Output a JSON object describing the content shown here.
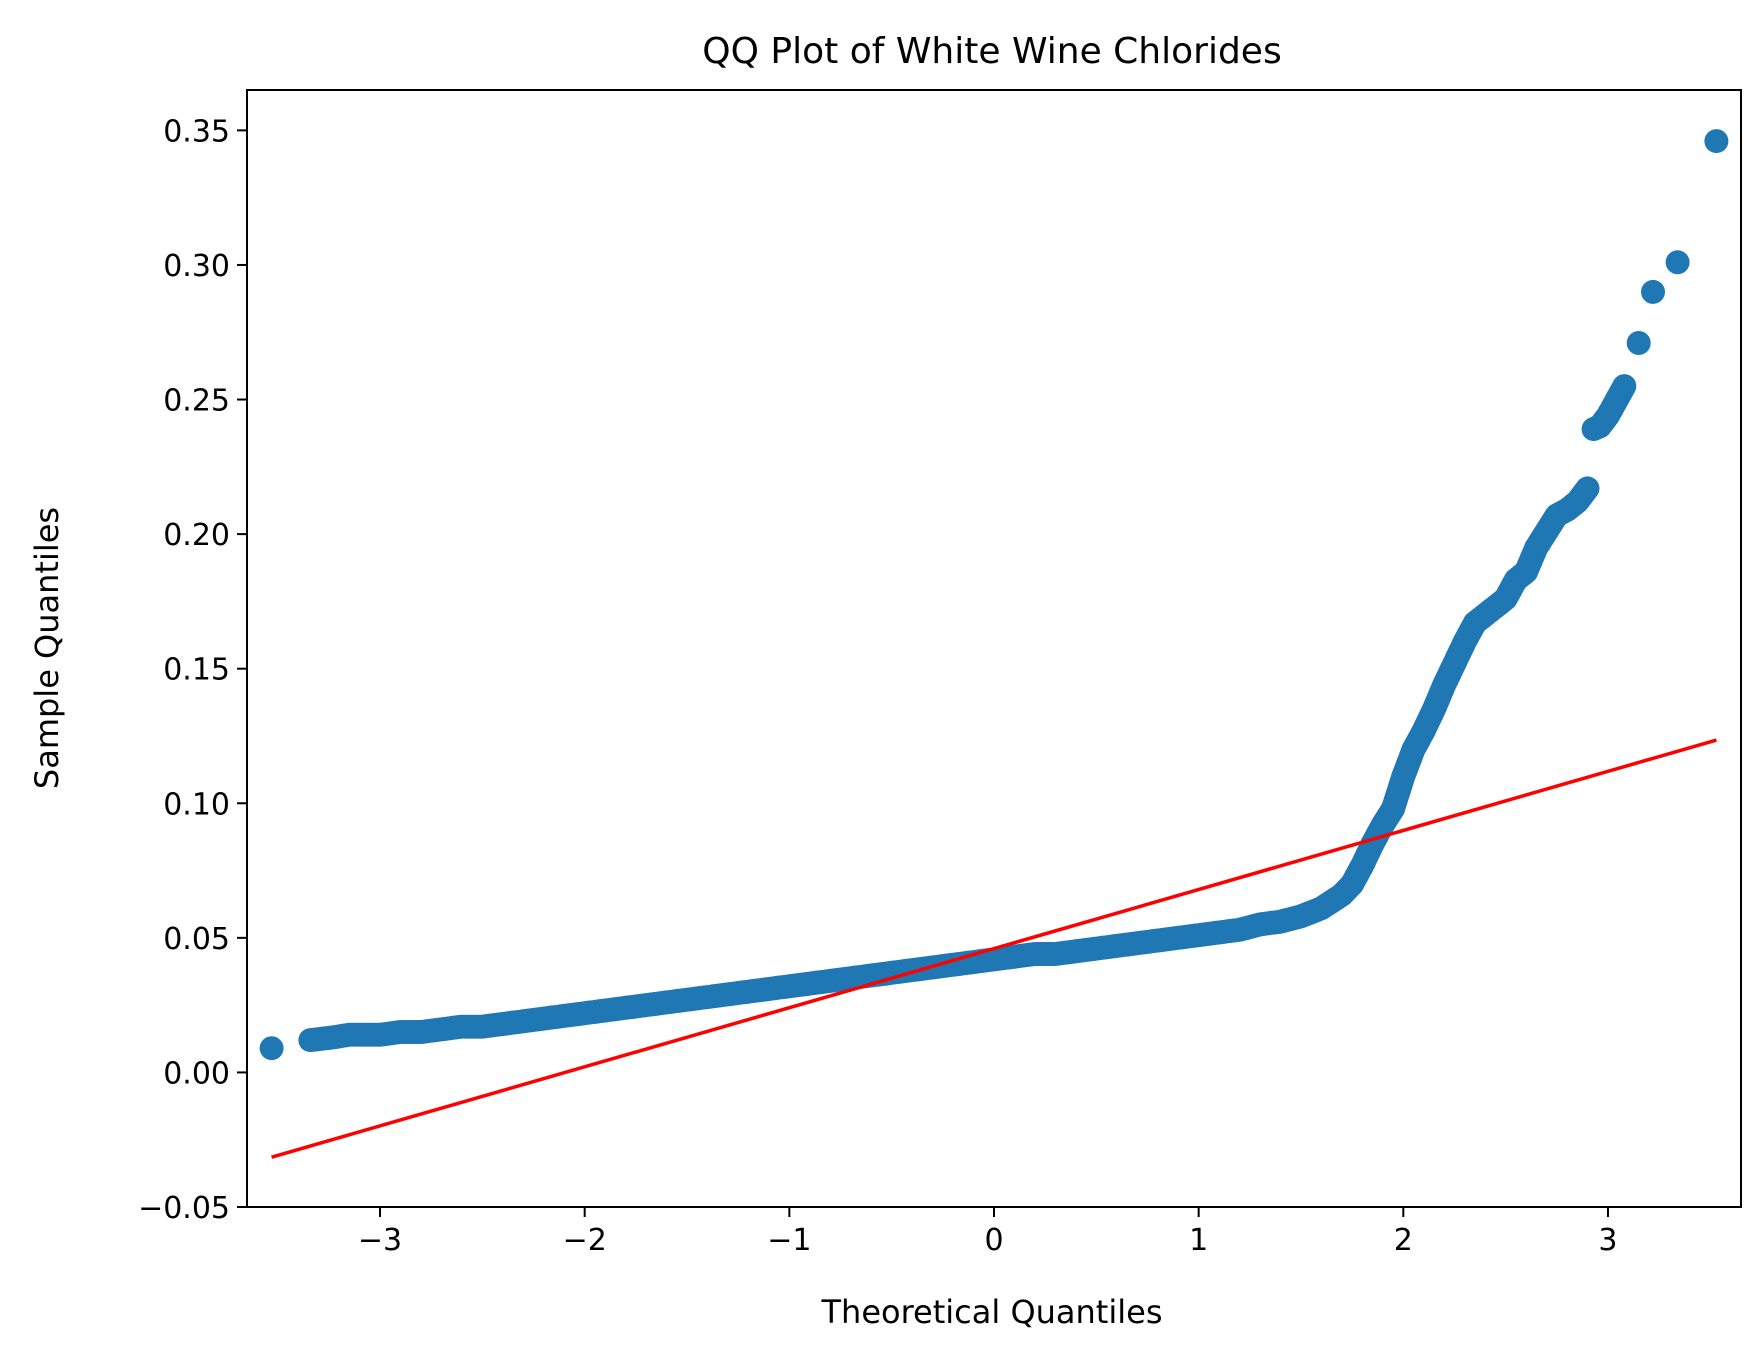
{
  "chart_data": {
    "type": "scatter",
    "title": "QQ Plot of White Wine Chlorides",
    "xlabel": "Theoretical Quantiles",
    "ylabel": "Sample Quantiles",
    "xlim": [
      -3.65,
      3.65
    ],
    "ylim": [
      -0.05,
      0.365
    ],
    "x_ticks": [
      -3,
      -2,
      -1,
      0,
      1,
      2,
      3
    ],
    "x_tick_labels": [
      "−3",
      "−2",
      "−1",
      "0",
      "1",
      "2",
      "3"
    ],
    "y_ticks": [
      -0.05,
      0.0,
      0.05,
      0.1,
      0.15,
      0.2,
      0.25,
      0.3,
      0.35
    ],
    "y_tick_labels": [
      "−0.05",
      "0.00",
      "0.05",
      "0.10",
      "0.15",
      "0.20",
      "0.25",
      "0.30",
      "0.35"
    ],
    "grid": false,
    "colors": {
      "points": "#1f77b4",
      "reference_line": "#ff0000"
    },
    "series": [
      {
        "kind": "points",
        "points": [
          [
            -3.53,
            0.009
          ],
          [
            -3.34,
            0.012
          ],
          [
            -3.23,
            0.013
          ],
          [
            -3.15,
            0.014
          ],
          [
            -3.08,
            0.014
          ],
          [
            -3.0,
            0.014
          ],
          [
            -2.9,
            0.015
          ],
          [
            -2.8,
            0.015
          ],
          [
            -2.7,
            0.016
          ],
          [
            -2.6,
            0.017
          ],
          [
            -2.5,
            0.017
          ],
          [
            -2.4,
            0.018
          ],
          [
            -2.3,
            0.019
          ],
          [
            -2.2,
            0.02
          ],
          [
            -2.1,
            0.021
          ],
          [
            -2.0,
            0.022
          ],
          [
            -1.9,
            0.023
          ],
          [
            -1.8,
            0.024
          ],
          [
            -1.7,
            0.025
          ],
          [
            -1.6,
            0.026
          ],
          [
            -1.5,
            0.027
          ],
          [
            -1.4,
            0.028
          ],
          [
            -1.3,
            0.029
          ],
          [
            -1.2,
            0.03
          ],
          [
            -1.1,
            0.031
          ],
          [
            -1.0,
            0.032
          ],
          [
            -0.9,
            0.033
          ],
          [
            -0.8,
            0.034
          ],
          [
            -0.7,
            0.035
          ],
          [
            -0.6,
            0.036
          ],
          [
            -0.5,
            0.037
          ],
          [
            -0.4,
            0.038
          ],
          [
            -0.3,
            0.039
          ],
          [
            -0.2,
            0.04
          ],
          [
            -0.1,
            0.041
          ],
          [
            0.0,
            0.042
          ],
          [
            0.1,
            0.043
          ],
          [
            0.2,
            0.044
          ],
          [
            0.3,
            0.044
          ],
          [
            0.4,
            0.045
          ],
          [
            0.5,
            0.046
          ],
          [
            0.6,
            0.047
          ],
          [
            0.7,
            0.048
          ],
          [
            0.8,
            0.049
          ],
          [
            0.9,
            0.05
          ],
          [
            1.0,
            0.051
          ],
          [
            1.1,
            0.052
          ],
          [
            1.2,
            0.053
          ],
          [
            1.3,
            0.055
          ],
          [
            1.4,
            0.056
          ],
          [
            1.5,
            0.058
          ],
          [
            1.6,
            0.061
          ],
          [
            1.7,
            0.066
          ],
          [
            1.75,
            0.07
          ],
          [
            1.8,
            0.077
          ],
          [
            1.85,
            0.085
          ],
          [
            1.9,
            0.092
          ],
          [
            1.95,
            0.098
          ],
          [
            2.0,
            0.11
          ],
          [
            2.05,
            0.12
          ],
          [
            2.1,
            0.127
          ],
          [
            2.15,
            0.135
          ],
          [
            2.2,
            0.144
          ],
          [
            2.25,
            0.152
          ],
          [
            2.3,
            0.16
          ],
          [
            2.35,
            0.167
          ],
          [
            2.4,
            0.17
          ],
          [
            2.45,
            0.173
          ],
          [
            2.5,
            0.176
          ],
          [
            2.55,
            0.183
          ],
          [
            2.6,
            0.186
          ],
          [
            2.65,
            0.195
          ],
          [
            2.7,
            0.201
          ],
          [
            2.75,
            0.207
          ],
          [
            2.8,
            0.209
          ],
          [
            2.85,
            0.212
          ],
          [
            2.9,
            0.217
          ],
          [
            2.93,
            0.239
          ],
          [
            2.96,
            0.24
          ],
          [
            3.0,
            0.244
          ],
          [
            3.08,
            0.255
          ],
          [
            3.15,
            0.271
          ],
          [
            3.22,
            0.29
          ],
          [
            3.34,
            0.301
          ],
          [
            3.53,
            0.346
          ]
        ]
      },
      {
        "kind": "reference-line",
        "points": [
          [
            -3.53,
            -0.0315
          ],
          [
            3.53,
            0.1235
          ]
        ]
      }
    ]
  }
}
